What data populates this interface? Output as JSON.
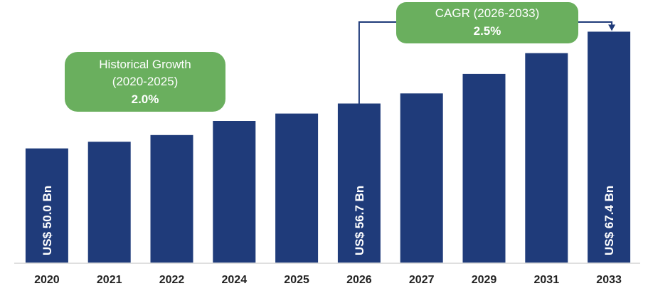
{
  "chart_data": {
    "type": "bar",
    "categories": [
      "2020",
      "2021",
      "2022",
      "2024",
      "2025",
      "2026",
      "2027",
      "2029",
      "2031",
      "2033"
    ],
    "values": [
      50.0,
      51.0,
      52.0,
      54.1,
      55.2,
      56.7,
      58.2,
      61.1,
      64.2,
      67.4
    ],
    "data_labels": {
      "2020": "US$ 50.0 Bn",
      "2026": "US$ 56.7 Bn",
      "2033": "US$ 67.4 Bn"
    },
    "ylim": [
      33,
      70
    ],
    "grid": false,
    "colors": {
      "bar": "#1f3b7a",
      "callout": "#6aaf5e",
      "connector": "#1f3b7a"
    }
  },
  "callouts": {
    "historical": {
      "line1": "Historical Growth",
      "line2": "(2020-2025)",
      "value": "2.0%"
    },
    "forecast": {
      "line1": "CAGR (2026-2033)",
      "value": "2.5%"
    }
  }
}
